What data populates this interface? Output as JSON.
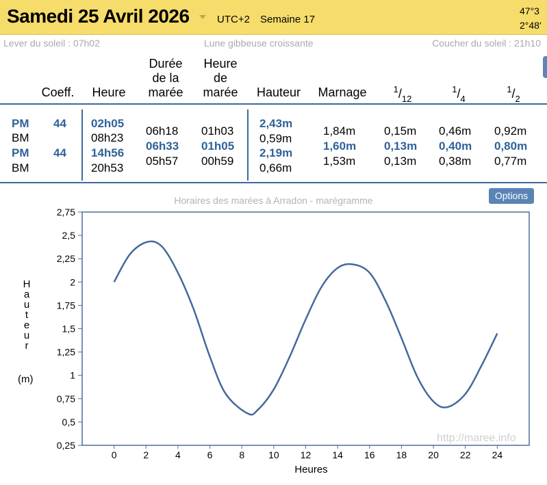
{
  "header": {
    "title": "Samedi 25 Avril 2026",
    "utc": "UTC+2",
    "week": "Semaine 17",
    "lat": "47°3",
    "lon": "2°48'"
  },
  "sun": {
    "sunrise": "Lever du soleil : 07h02",
    "moon": "Lune gibbeuse croissante",
    "sunset": "Coucher du soleil : 21h10"
  },
  "table": {
    "columns": {
      "coeff": "Coeff.",
      "heure": "Heure",
      "duree": [
        "Durée",
        "de la",
        "marée"
      ],
      "heure_maree": [
        "Heure",
        "de",
        "marée"
      ],
      "hauteur": "Hauteur",
      "marnage": "Marnage",
      "f12": {
        "num": "1",
        "den": "12"
      },
      "f4": {
        "num": "1",
        "den": "4"
      },
      "f2": {
        "num": "1",
        "den": "2"
      }
    },
    "rows": [
      {
        "type": "PM",
        "coeff": "44",
        "heure": "02h05",
        "hauteur": "2,43m"
      },
      {
        "type": "BM",
        "coeff": "",
        "heure": "08h23",
        "hauteur": "0,59m"
      },
      {
        "type": "PM",
        "coeff": "44",
        "heure": "14h56",
        "hauteur": "2,19m"
      },
      {
        "type": "BM",
        "coeff": "",
        "heure": "20h53",
        "hauteur": "0,66m"
      }
    ],
    "intervals": [
      {
        "duree": "06h18",
        "heure_maree": "01h03",
        "marnage": "1,84m",
        "f12": "0,15m",
        "f4": "0,46m",
        "f2": "0,92m",
        "highlight": false
      },
      {
        "duree": "06h33",
        "heure_maree": "01h05",
        "marnage": "1,60m",
        "f12": "0,13m",
        "f4": "0,40m",
        "f2": "0,80m",
        "highlight": true
      },
      {
        "duree": "05h57",
        "heure_maree": "00h59",
        "marnage": "1,53m",
        "f12": "0,13m",
        "f4": "0,38m",
        "f2": "0,77m",
        "highlight": false
      }
    ]
  },
  "chart": {
    "title": "Horaires des marées à Arradon - marégramme",
    "options_label": "Options",
    "watermark": "http://maree.info",
    "ylabel_letters": [
      "H",
      "a",
      "u",
      "t",
      "e",
      "u",
      "r"
    ],
    "yunit": "(m)",
    "xlabel": "Heures",
    "line_color": "#44699a"
  },
  "chart_data": {
    "type": "line",
    "title": "Horaires des marées à Arradon - marégramme",
    "xlabel": "Heures",
    "ylabel": "Hauteur (m)",
    "xlim": [
      -2,
      26
    ],
    "ylim": [
      0.25,
      2.75
    ],
    "xticks": [
      0,
      2,
      4,
      6,
      8,
      10,
      12,
      14,
      16,
      18,
      20,
      22,
      24
    ],
    "yticks": [
      0.25,
      0.5,
      0.75,
      1,
      1.25,
      1.5,
      1.75,
      2,
      2.25,
      2.5,
      2.75
    ],
    "ytick_labels": [
      "0,25",
      "0,5",
      "0,75",
      "1",
      "1,25",
      "1,5",
      "1,75",
      "2",
      "2,25",
      "2,5",
      "2,75"
    ],
    "series": [
      {
        "x": [
          0,
          1,
          2.08,
          3,
          4,
          5,
          6,
          7,
          8.38,
          9,
          10,
          11,
          12,
          13,
          14,
          14.93,
          16,
          17,
          18,
          19,
          20,
          20.88,
          22,
          23,
          24
        ],
        "y": [
          2.0,
          2.3,
          2.43,
          2.38,
          2.1,
          1.7,
          1.2,
          0.8,
          0.59,
          0.63,
          0.85,
          1.2,
          1.6,
          1.95,
          2.15,
          2.19,
          2.1,
          1.8,
          1.4,
          0.98,
          0.72,
          0.66,
          0.8,
          1.1,
          1.45
        ]
      }
    ]
  }
}
